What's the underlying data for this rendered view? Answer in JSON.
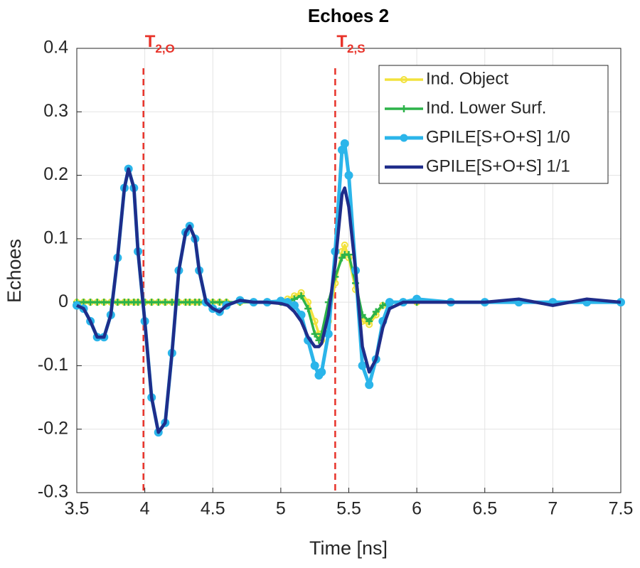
{
  "chart_data": {
    "type": "line",
    "title": "Echoes 2",
    "x_label": "Time [ns]",
    "y_label": "Echoes",
    "xlim": [
      3.5,
      7.5
    ],
    "ylim": [
      -0.3,
      0.4
    ],
    "xticks": [
      3.5,
      4,
      4.5,
      5,
      5.5,
      6,
      6.5,
      7,
      7.5
    ],
    "yticks": [
      -0.3,
      -0.2,
      -0.1,
      0,
      0.1,
      0.2,
      0.3,
      0.4
    ],
    "grid": true,
    "legend": "upper right",
    "annotations": [
      {
        "text": "T",
        "sub": "2,O",
        "x": 3.99,
        "color": "#e8332a"
      },
      {
        "text": "T",
        "sub": "2,S",
        "x": 5.4,
        "color": "#e8332a"
      }
    ],
    "x": [
      3.5,
      3.55,
      3.6,
      3.65,
      3.7,
      3.75,
      3.8,
      3.85,
      3.88,
      3.92,
      3.95,
      4.0,
      4.05,
      4.1,
      4.15,
      4.2,
      4.25,
      4.3,
      4.33,
      4.37,
      4.4,
      4.45,
      4.5,
      4.55,
      4.6,
      4.7,
      4.8,
      4.9,
      5.0,
      5.05,
      5.1,
      5.15,
      5.2,
      5.25,
      5.28,
      5.3,
      5.35,
      5.4,
      5.45,
      5.47,
      5.5,
      5.55,
      5.6,
      5.65,
      5.7,
      5.75,
      5.8,
      5.9,
      6.0,
      6.25,
      6.5,
      6.75,
      7.0,
      7.25,
      7.5
    ],
    "series": [
      {
        "name": "Ind. Object",
        "color": "#f2e23c",
        "marker": "circle-open",
        "values": [
          0,
          0,
          0,
          0,
          0,
          0,
          0,
          0,
          0,
          0,
          0,
          0,
          0,
          0,
          0,
          0,
          0,
          0,
          0,
          0,
          0,
          0,
          0,
          0,
          0,
          0,
          0,
          0,
          0,
          0.005,
          0.01,
          0.015,
          0.0,
          -0.03,
          -0.05,
          -0.06,
          -0.03,
          0.03,
          0.08,
          0.09,
          0.07,
          0.02,
          -0.03,
          -0.035,
          -0.02,
          -0.005,
          0,
          0,
          0,
          0,
          0,
          0,
          0,
          0,
          0
        ]
      },
      {
        "name": "Ind. Lower Surf.",
        "color": "#2db34a",
        "marker": "plus",
        "values": [
          0,
          0,
          0,
          0,
          0,
          0,
          0,
          0,
          0,
          0,
          0,
          0,
          0,
          0,
          0,
          0,
          0,
          0,
          0,
          0,
          0,
          0,
          0,
          0,
          0,
          0,
          0,
          0,
          0,
          0,
          0.005,
          0.01,
          -0.01,
          -0.05,
          -0.06,
          -0.05,
          0.0,
          0.04,
          0.07,
          0.075,
          0.075,
          0.03,
          -0.02,
          -0.03,
          -0.015,
          -0.005,
          0,
          0,
          0,
          0,
          0,
          0,
          0,
          0,
          0
        ]
      },
      {
        "name": "GPILE[S+O+S] 1/0",
        "color": "#2bb5ea",
        "marker": "circle",
        "values": [
          -0.005,
          -0.01,
          -0.03,
          -0.055,
          -0.055,
          -0.02,
          0.07,
          0.18,
          0.21,
          0.18,
          0.08,
          -0.03,
          -0.15,
          -0.205,
          -0.19,
          -0.08,
          0.05,
          0.11,
          0.12,
          0.1,
          0.05,
          0.0,
          -0.01,
          -0.015,
          -0.005,
          0.003,
          0,
          0,
          0.002,
          0.0,
          -0.005,
          -0.02,
          -0.06,
          -0.1,
          -0.115,
          -0.11,
          -0.05,
          0.08,
          0.24,
          0.25,
          0.2,
          0.05,
          -0.1,
          -0.13,
          -0.09,
          -0.03,
          0,
          0,
          0.005,
          0,
          0,
          0,
          0,
          0,
          0
        ]
      },
      {
        "name": "GPILE[S+O+S] 1/1",
        "color": "#1f2d8a",
        "marker": "none",
        "values": [
          -0.005,
          -0.01,
          -0.03,
          -0.055,
          -0.055,
          -0.02,
          0.07,
          0.18,
          0.21,
          0.18,
          0.08,
          -0.03,
          -0.15,
          -0.205,
          -0.19,
          -0.08,
          0.05,
          0.11,
          0.12,
          0.1,
          0.05,
          0.0,
          -0.01,
          -0.015,
          -0.005,
          0.003,
          0,
          0,
          -0.002,
          -0.005,
          -0.015,
          -0.03,
          -0.055,
          -0.07,
          -0.07,
          -0.065,
          -0.02,
          0.06,
          0.17,
          0.18,
          0.15,
          0.05,
          -0.07,
          -0.11,
          -0.09,
          -0.04,
          -0.01,
          0,
          0,
          0,
          0,
          0.005,
          -0.005,
          0.005,
          0
        ]
      }
    ]
  }
}
